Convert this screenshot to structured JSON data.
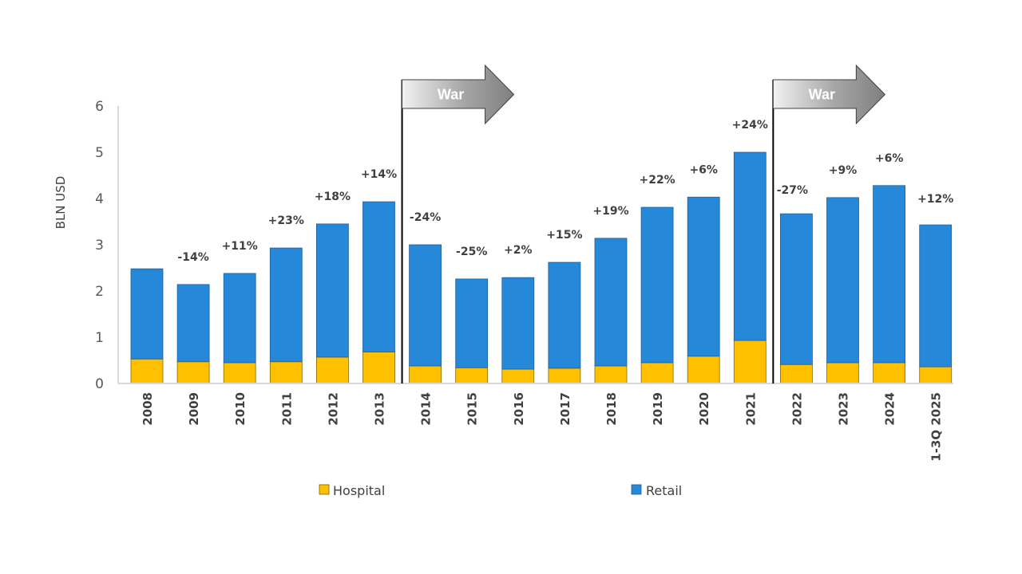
{
  "chart_data": {
    "type": "bar",
    "stacked": true,
    "title": "",
    "xlabel": "",
    "ylabel": "BLN USD",
    "ylim": [
      0,
      6
    ],
    "yticks": [
      0,
      1,
      2,
      3,
      4,
      5,
      6
    ],
    "grid": false,
    "legend_position": "bottom",
    "categories": [
      "2008",
      "2009",
      "2010",
      "2011",
      "2012",
      "2013",
      "2014",
      "2015",
      "2016",
      "2017",
      "2018",
      "2019",
      "2020",
      "2021",
      "2022",
      "2023",
      "2024",
      "1-3Q 2025"
    ],
    "series": [
      {
        "name": "Hospital",
        "color": "#FFC000",
        "values": [
          0.53,
          0.47,
          0.45,
          0.47,
          0.57,
          0.68,
          0.38,
          0.34,
          0.31,
          0.33,
          0.38,
          0.45,
          0.59,
          0.93,
          0.41,
          0.45,
          0.45,
          0.36
        ]
      },
      {
        "name": "Retail",
        "color": "#2688D8",
        "values": [
          1.95,
          1.67,
          1.93,
          2.46,
          2.88,
          3.25,
          2.62,
          1.92,
          1.98,
          2.29,
          2.76,
          3.36,
          3.44,
          4.07,
          3.26,
          3.57,
          3.83,
          3.07
        ]
      }
    ],
    "growth_labels": [
      "",
      "-14%",
      "+11%",
      "+23%",
      "+18%",
      "+14%",
      "-24%",
      "-25%",
      "+2%",
      "+15%",
      "+19%",
      "+22%",
      "+6%",
      "+24%",
      "-27%",
      "+9%",
      "+6%",
      "+12%"
    ],
    "annotations": [
      {
        "text": "War",
        "start_category": "2014"
      },
      {
        "text": "War",
        "start_category": "2022"
      }
    ]
  }
}
